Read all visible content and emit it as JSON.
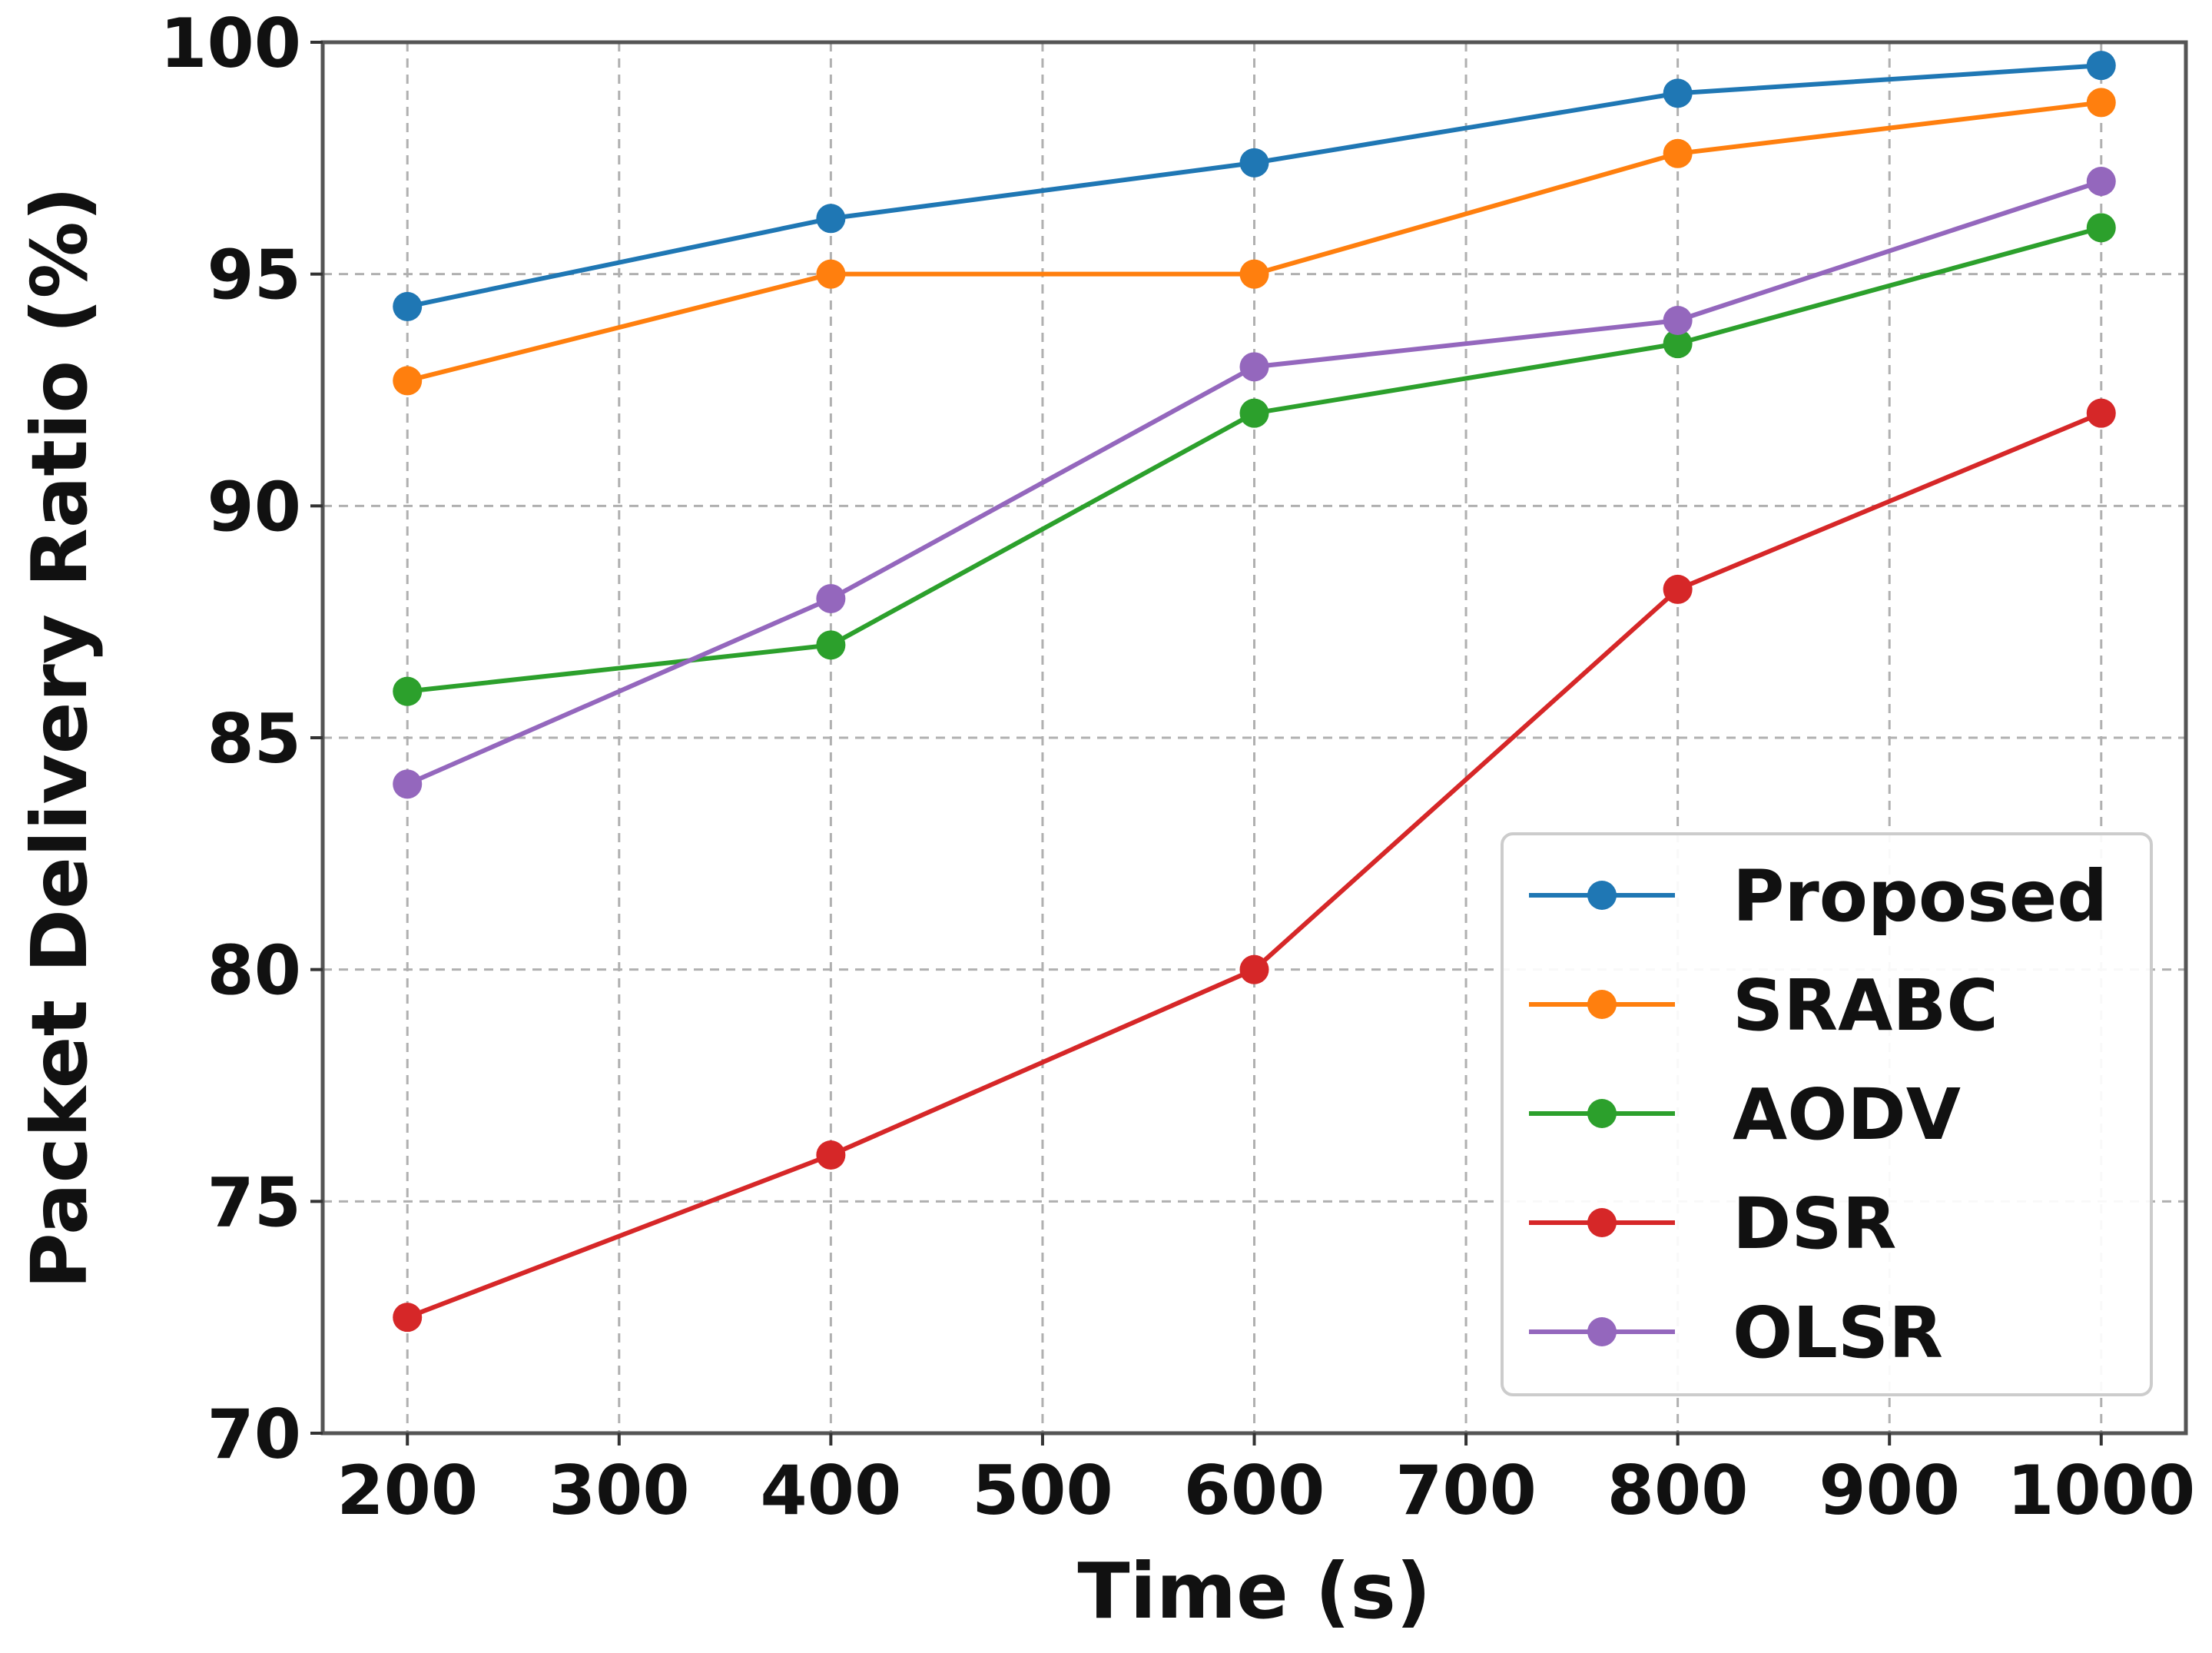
{
  "chart_data": {
    "type": "line",
    "title": "",
    "xlabel": "Time (s)",
    "ylabel": "Packet Delivery Ratio (%)",
    "xlim": [
      160,
      1040
    ],
    "ylim": [
      70,
      100
    ],
    "xticks": [
      200,
      300,
      400,
      500,
      600,
      700,
      800,
      900,
      1000
    ],
    "yticks": [
      70,
      75,
      80,
      85,
      90,
      95,
      100
    ],
    "grid": true,
    "legend_position": "lower-right",
    "x": [
      200,
      400,
      600,
      800,
      1000
    ],
    "series": [
      {
        "name": "Proposed",
        "color": "#1f77b4",
        "values": [
          94.3,
          96.2,
          97.4,
          98.9,
          99.5
        ]
      },
      {
        "name": "SRABC",
        "color": "#ff7f0e",
        "values": [
          92.7,
          95.0,
          95.0,
          97.6,
          98.7
        ]
      },
      {
        "name": "AODV",
        "color": "#2ca02c",
        "values": [
          86.0,
          87.0,
          92.0,
          93.5,
          96.0
        ]
      },
      {
        "name": "DSR",
        "color": "#d62728",
        "values": [
          72.5,
          76.0,
          80.0,
          88.2,
          92.0
        ]
      },
      {
        "name": "OLSR",
        "color": "#9467bd",
        "values": [
          84.0,
          88.0,
          93.0,
          94.0,
          97.0
        ]
      }
    ]
  }
}
